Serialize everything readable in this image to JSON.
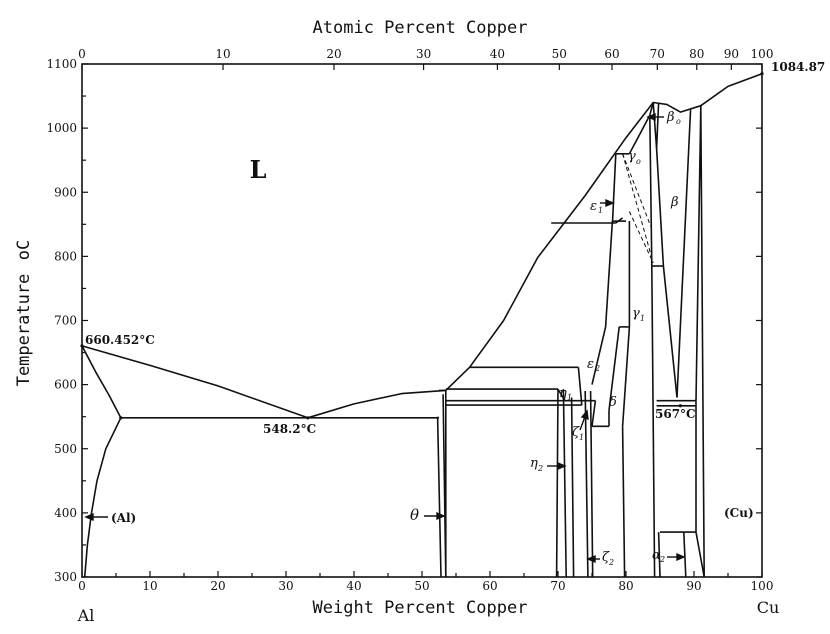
{
  "chart_data": {
    "type": "phase-diagram",
    "title": "",
    "xlabel": "Weight Percent Copper",
    "x2label": "Atomic Percent Copper",
    "ylabel": "Temperature",
    "ylabel_unit": "oC",
    "xlim": [
      0,
      100
    ],
    "ylim": [
      300,
      1100
    ],
    "grid": false,
    "x_ticks": [
      "0",
      "10",
      "20",
      "30",
      "40",
      "50",
      "60",
      "70",
      "80",
      "90",
      "100"
    ],
    "y_ticks": [
      "300",
      "400",
      "500",
      "600",
      "700",
      "800",
      "900",
      "1000",
      "1100"
    ],
    "top_ticks": [
      "0",
      "10",
      "20",
      "30",
      "40",
      "50",
      "60",
      "70",
      "80",
      "90",
      "100"
    ],
    "left_element": "Al",
    "right_element": "Cu",
    "annotations": {
      "al_melting": "660.452°C",
      "cu_melting": "1084.87",
      "eutectic": "548.2°C",
      "eutectoid": "567°C"
    },
    "phase_labels": {
      "liquid": "L",
      "al": "(Al)",
      "cu": "(Cu)",
      "theta": "θ",
      "eta1": "η",
      "eta2": "η",
      "zeta1": "ζ",
      "zeta2": "ζ",
      "epsilon1": "ε",
      "epsilon2": "ε",
      "delta": "δ",
      "gamma0": "γ",
      "gamma1": "γ",
      "beta0": "β",
      "beta": "β",
      "alpha2": "α"
    },
    "key_points": [
      {
        "name": "Al melting point",
        "x": 0,
        "y": 660.452
      },
      {
        "name": "Al-rich eutectic",
        "x": 33.2,
        "y": 548.2
      },
      {
        "name": "Max solubility of Cu in (Al)",
        "x": 5.7,
        "y": 548.2
      },
      {
        "name": "Cu melting point",
        "x": 100,
        "y": 1084.87
      },
      {
        "name": "Eutectoid",
        "x": 88,
        "y": 567
      }
    ],
    "liquidus": [
      {
        "x": 0,
        "y": 660.452
      },
      {
        "x": 10,
        "y": 630
      },
      {
        "x": 20,
        "y": 598
      },
      {
        "x": 33.2,
        "y": 548.2
      },
      {
        "x": 40,
        "y": 570
      },
      {
        "x": 47,
        "y": 586
      },
      {
        "x": 53.5,
        "y": 591
      },
      {
        "x": 57,
        "y": 627
      },
      {
        "x": 62,
        "y": 700
      },
      {
        "x": 67,
        "y": 798
      },
      {
        "x": 74,
        "y": 895
      },
      {
        "x": 80,
        "y": 985
      },
      {
        "x": 84,
        "y": 1040
      },
      {
        "x": 86,
        "y": 1037
      },
      {
        "x": 88,
        "y": 1025
      },
      {
        "x": 91,
        "y": 1035
      },
      {
        "x": 95,
        "y": 1065
      },
      {
        "x": 100,
        "y": 1084.87
      }
    ],
    "solidus_al": [
      {
        "x": 0,
        "y": 660.452
      },
      {
        "x": 2,
        "y": 620
      },
      {
        "x": 4,
        "y": 583
      },
      {
        "x": 5.7,
        "y": 548.2
      }
    ],
    "solvus_al": [
      {
        "x": 5.7,
        "y": 548.2
      },
      {
        "x": 3.5,
        "y": 500
      },
      {
        "x": 2.2,
        "y": 450
      },
      {
        "x": 1.4,
        "y": 400
      },
      {
        "x": 0.8,
        "y": 350
      },
      {
        "x": 0.4,
        "y": 300
      }
    ]
  }
}
